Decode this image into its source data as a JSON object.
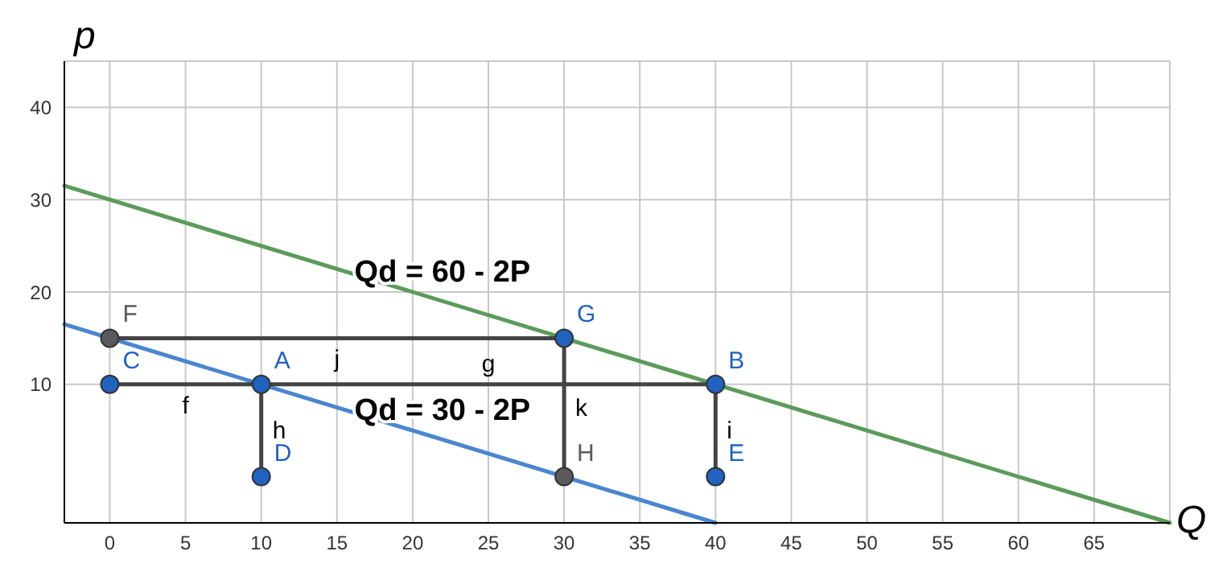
{
  "chart_data": {
    "type": "line",
    "xlabel": "Q",
    "ylabel": "p",
    "xlim": [
      -3,
      70
    ],
    "ylim": [
      -5,
      45
    ],
    "xticks": [
      0,
      5,
      10,
      15,
      20,
      25,
      30,
      35,
      40,
      45,
      50,
      55,
      60,
      65
    ],
    "yticks": [
      10,
      20,
      30,
      40
    ],
    "grid": true,
    "line_style": "solid",
    "series": [
      {
        "name": "Qd = 60 - 2P",
        "color": "#5b9b5b",
        "x": [
          -3,
          70
        ],
        "values": [
          31.5,
          -5
        ]
      },
      {
        "name": "Qd = 30 - 2P",
        "color": "#4a86d0",
        "x": [
          -3,
          40
        ],
        "values": [
          16.5,
          -5
        ]
      },
      {
        "name": "j",
        "color": "#444444",
        "x": [
          0,
          30
        ],
        "values": [
          15,
          15
        ]
      },
      {
        "name": "f",
        "color": "#444444",
        "x": [
          0,
          10
        ],
        "values": [
          10,
          10
        ]
      },
      {
        "name": "g",
        "color": "#444444",
        "x": [
          10,
          40
        ],
        "values": [
          10,
          10
        ]
      },
      {
        "name": "h",
        "color": "#444444",
        "x": [
          10,
          10
        ],
        "values": [
          10,
          0
        ]
      },
      {
        "name": "k",
        "color": "#444444",
        "x": [
          30,
          30
        ],
        "values": [
          15,
          0
        ]
      },
      {
        "name": "i",
        "color": "#444444",
        "x": [
          40,
          40
        ],
        "values": [
          10,
          0
        ]
      },
      {
        "type": "scatter",
        "marker": "circle",
        "x": [
          0,
          0,
          10,
          10,
          30,
          30,
          40,
          40
        ],
        "values": [
          15,
          10,
          10,
          0,
          15,
          0,
          10,
          0
        ],
        "colors": [
          "#5a5a5a",
          "#1f62c0",
          "#1f62c0",
          "#1f62c0",
          "#1f62c0",
          "#5a5a5a",
          "#1f62c0",
          "#1f62c0"
        ],
        "value_labels": [
          "F",
          "C",
          "A",
          "D",
          "G",
          "H",
          "B",
          "E"
        ]
      }
    ]
  }
}
